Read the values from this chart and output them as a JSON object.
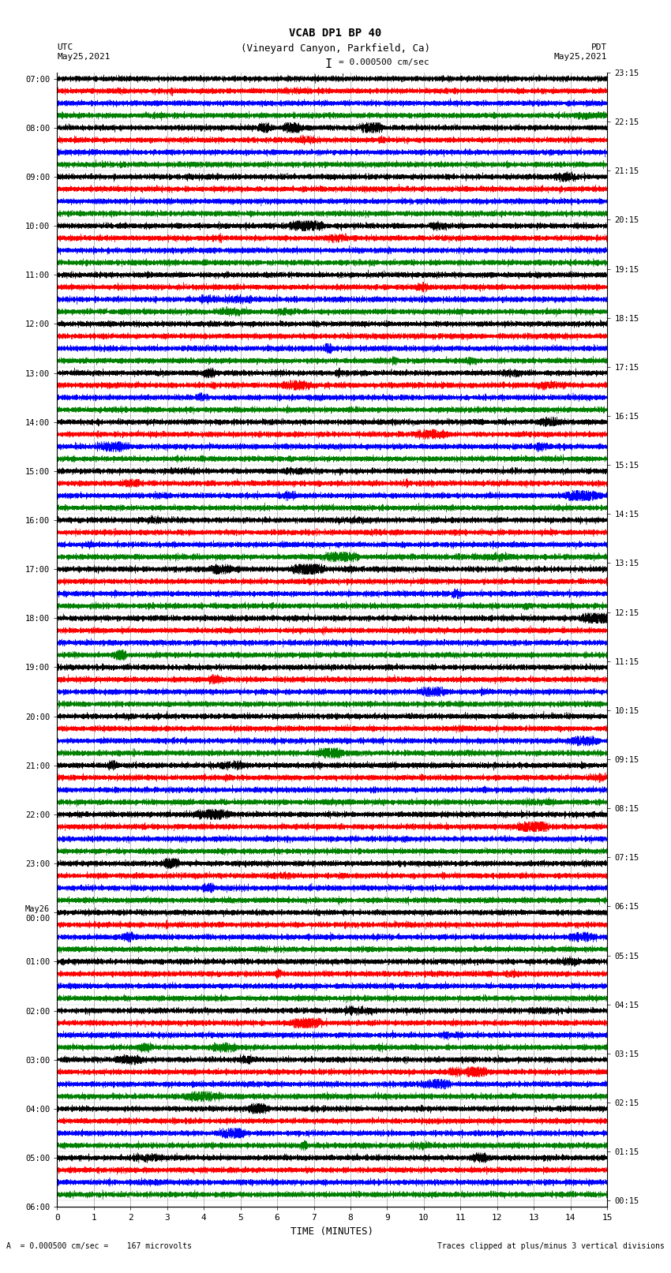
{
  "title_line1": "VCAB DP1 BP 40",
  "title_line2": "(Vineyard Canyon, Parkfield, Ca)",
  "scale_label": "I = 0.000500 cm/sec",
  "footer_left": "A  = 0.000500 cm/sec =    167 microvolts",
  "footer_right": "Traces clipped at plus/minus 3 vertical divisions",
  "utc_label": "UTC",
  "utc_date": "May25,2021",
  "pdt_label": "PDT",
  "pdt_date": "May25,2021",
  "xlabel": "TIME (MINUTES)",
  "xmin": 0,
  "xmax": 15,
  "xticks": [
    0,
    1,
    2,
    3,
    4,
    5,
    6,
    7,
    8,
    9,
    10,
    11,
    12,
    13,
    14,
    15
  ],
  "colors": [
    "black",
    "red",
    "blue",
    "green"
  ],
  "utc_times": [
    "07:00",
    "",
    "",
    "",
    "08:00",
    "",
    "",
    "",
    "09:00",
    "",
    "",
    "",
    "10:00",
    "",
    "",
    "",
    "11:00",
    "",
    "",
    "",
    "12:00",
    "",
    "",
    "",
    "13:00",
    "",
    "",
    "",
    "14:00",
    "",
    "",
    "",
    "15:00",
    "",
    "",
    "",
    "16:00",
    "",
    "",
    "",
    "17:00",
    "",
    "",
    "",
    "18:00",
    "",
    "",
    "",
    "19:00",
    "",
    "",
    "",
    "20:00",
    "",
    "",
    "",
    "21:00",
    "",
    "",
    "",
    "22:00",
    "",
    "",
    "",
    "23:00",
    "",
    "",
    "",
    "May26\n00:00",
    "",
    "",
    "",
    "01:00",
    "",
    "",
    "",
    "02:00",
    "",
    "",
    "",
    "03:00",
    "",
    "",
    "",
    "04:00",
    "",
    "",
    "",
    "05:00",
    "",
    "",
    "",
    "06:00",
    "",
    "",
    ""
  ],
  "pdt_times": [
    "00:15",
    "",
    "",
    "",
    "01:15",
    "",
    "",
    "",
    "02:15",
    "",
    "",
    "",
    "03:15",
    "",
    "",
    "",
    "04:15",
    "",
    "",
    "",
    "05:15",
    "",
    "",
    "",
    "06:15",
    "",
    "",
    "",
    "07:15",
    "",
    "",
    "",
    "08:15",
    "",
    "",
    "",
    "09:15",
    "",
    "",
    "",
    "10:15",
    "",
    "",
    "",
    "11:15",
    "",
    "",
    "",
    "12:15",
    "",
    "",
    "",
    "13:15",
    "",
    "",
    "",
    "14:15",
    "",
    "",
    "",
    "15:15",
    "",
    "",
    "",
    "16:15",
    "",
    "",
    "",
    "17:15",
    "",
    "",
    "",
    "18:15",
    "",
    "",
    "",
    "19:15",
    "",
    "",
    "",
    "20:15",
    "",
    "",
    "",
    "21:15",
    "",
    "",
    "",
    "22:15",
    "",
    "",
    "",
    "23:15",
    "",
    "",
    ""
  ],
  "n_rows": 92,
  "bg_color": "#ffffff",
  "figsize": [
    8.5,
    16.13
  ],
  "dpi": 100
}
